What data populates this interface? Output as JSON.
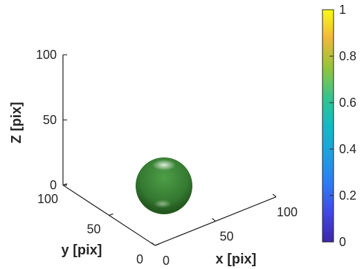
{
  "chart_data": {
    "type": "surface",
    "object": "sphere",
    "object_color": "#3f8a3a",
    "xlabel": "x [pix]",
    "ylabel": "y [pix]",
    "zlabel": "Z [pix]",
    "xlim": [
      0,
      100
    ],
    "ylim": [
      0,
      100
    ],
    "zlim": [
      0,
      100
    ],
    "x_ticks": [
      "0",
      "50",
      "100"
    ],
    "y_ticks": [
      "0",
      "50",
      "100"
    ],
    "z_ticks": [
      "0",
      "50",
      "100"
    ],
    "colorbar": {
      "ticks": [
        "0",
        "0.2",
        "0.4",
        "0.6",
        "0.8",
        "1"
      ],
      "range": [
        0,
        1
      ],
      "colormap": "parula",
      "placement": "right"
    },
    "grid": false
  }
}
